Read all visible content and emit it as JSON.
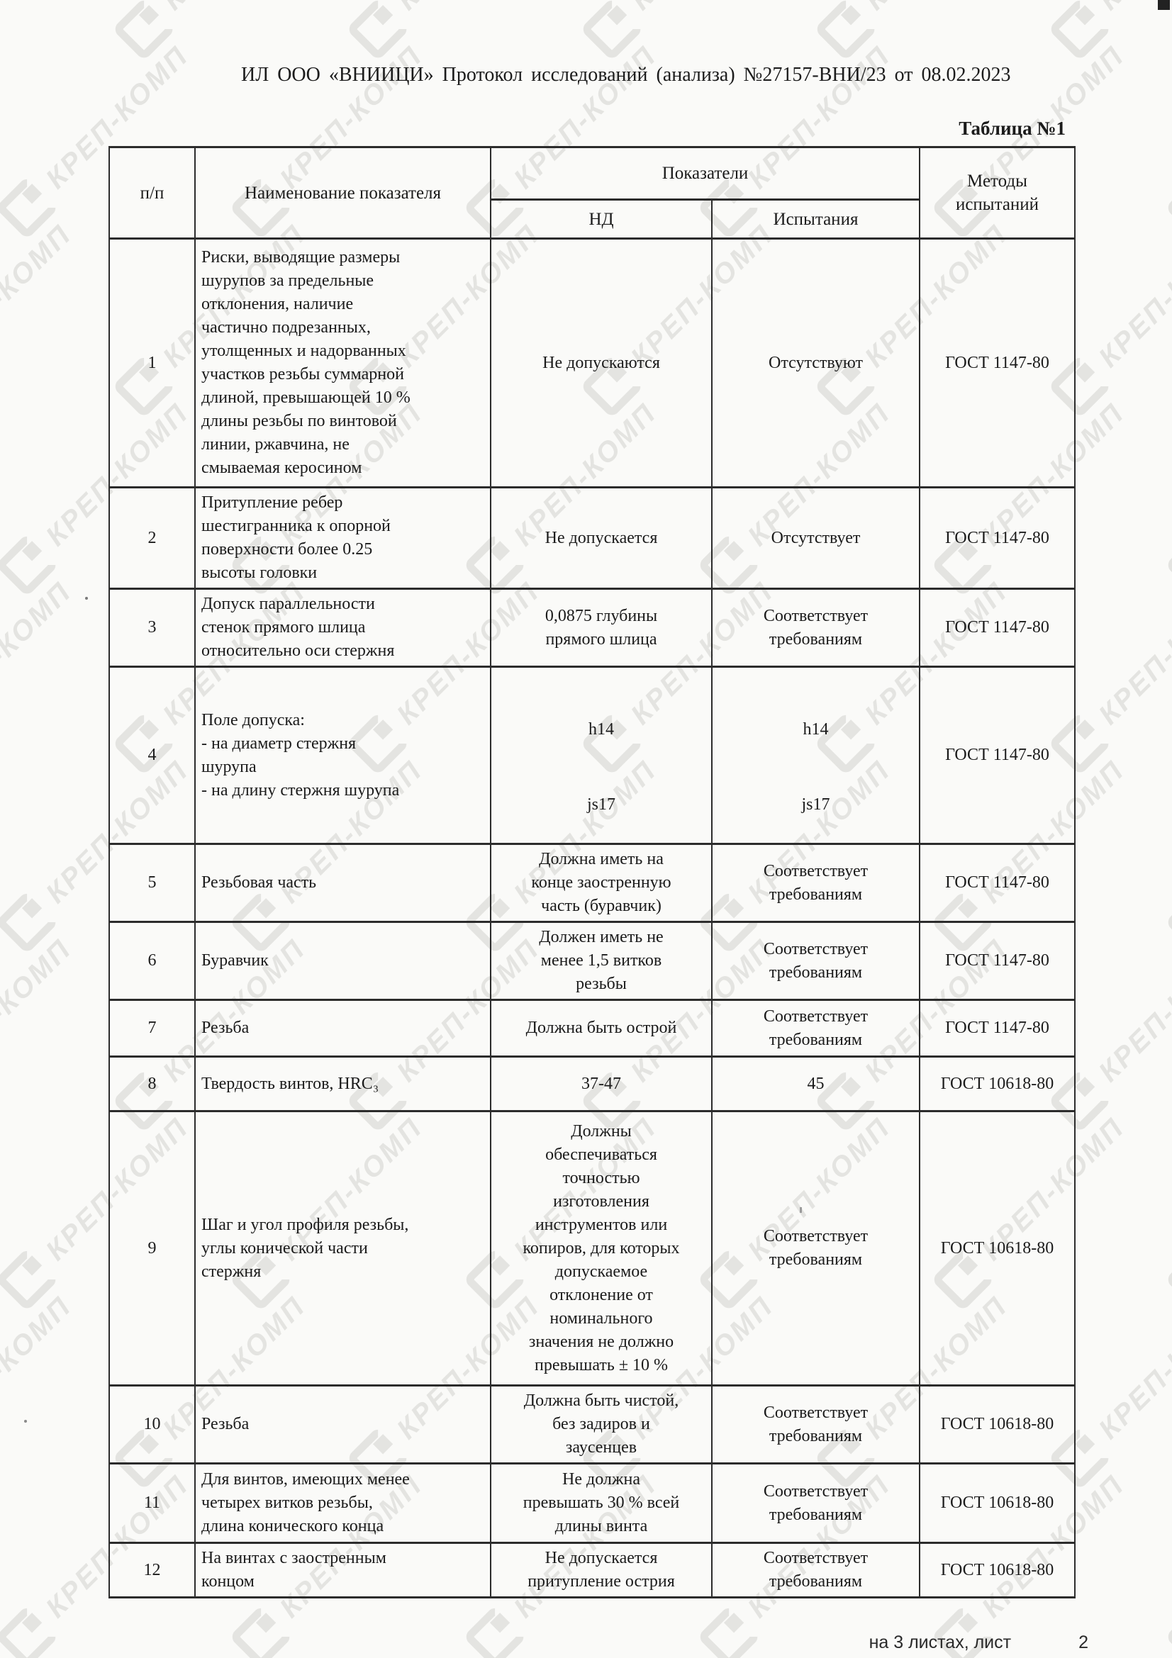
{
  "page": {
    "title": "ИЛ ООО «ВНИИЦИ» Протокол исследований (анализа) №27157-ВНИ/23 от 08.02.2023"
  },
  "table": {
    "caption": "Таблица №1",
    "columns": {
      "num": "п/п",
      "name": "Наименование показателя",
      "indicators": "Показатели",
      "nd": "НД",
      "test": "Испытания",
      "methods": "Методы\nиспытаний"
    },
    "rows": [
      {
        "num": "1",
        "name": "Риски, выводящие размеры\nшурупов за предельные\nотклонения, наличие\nчастично подрезанных,\nутолщенных и надорванных\nучастков резьбы суммарной\nдлиной, превышающей 10 %\nдлины резьбы по винтовой\nлинии, ржавчина, не\nсмываемая керосином",
        "nd": "Не допускаются",
        "test": "Отсутствуют",
        "method": "ГОСТ 1147-80"
      },
      {
        "num": "2",
        "name": "Притупление ребер\nшестигранника к опорной\nповерхности более 0.25\nвысоты головки",
        "nd": "Не допускается",
        "test": "Отсутствует",
        "method": "ГОСТ 1147-80"
      },
      {
        "num": "3",
        "name": "Допуск параллельности\nстенок прямого шлица\nотносительно оси стержня",
        "nd": "0,0875 глубины\nпрямого шлица",
        "test": "Соответствует\nтребованиям",
        "method": "ГОСТ 1147-80"
      },
      {
        "num": "4",
        "name": "Поле допуска:\n- на диаметр стержня\nшурупа\n- на длину стержня шурупа",
        "nd_top": "h14",
        "nd_bottom": "js17",
        "test_top": "h14",
        "test_bottom": "js17",
        "method": "ГОСТ 1147-80"
      },
      {
        "num": "5",
        "name": "Резьбовая часть",
        "nd": "Должна иметь на\nконце заостренную\nчасть (буравчик)",
        "test": "Соответствует\nтребованиям",
        "method": "ГОСТ 1147-80"
      },
      {
        "num": "6",
        "name": "Буравчик",
        "nd": "Должен иметь не\nменее 1,5 витков\nрезьбы",
        "test": "Соответствует\nтребованиям",
        "method": "ГОСТ 1147-80"
      },
      {
        "num": "7",
        "name": "Резьба",
        "nd": "Должна быть острой",
        "test": "Соответствует\nтребованиям",
        "method": "ГОСТ 1147-80"
      },
      {
        "num": "8",
        "name": "Твердость винтов, HRC₃",
        "nd": "37-47",
        "test": "45",
        "method": "ГОСТ 10618-80"
      },
      {
        "num": "9",
        "name": "Шаг и угол профиля резьбы,\nуглы конической части\nстержня",
        "nd": "Должны\nобеспечиваться\nточностью\nизготовления\nинструментов или\nкопиров, для которых\nдопускаемое\nотклонение от\nноминального\nзначения не должно\nпревышать ± 10 %",
        "test": "Соответствует\nтребованиям",
        "method": "ГОСТ 10618-80"
      },
      {
        "num": "10",
        "name": "Резьба",
        "nd": "Должна быть чистой,\nбез задиров и\nзаусенцев",
        "test": "Соответствует\nтребованиям",
        "method": "ГОСТ 10618-80"
      },
      {
        "num": "11",
        "name": "Для винтов, имеющих менее\nчетырех витков резьбы,\nдлина конического конца",
        "nd": "Не должна\nпревышать 30 % всей\nдлины винта",
        "test": "Соответствует\nтребованиям",
        "method": "ГОСТ 10618-80"
      },
      {
        "num": "12",
        "name": "На винтах с заостренным\nконцом",
        "nd": "Не допускается\nпритупление острия",
        "test": "Соответствует\nтребованиям",
        "method": "ГОСТ 10618-80"
      }
    ]
  },
  "footer": {
    "label": "на 3 листах, лист",
    "page": "2"
  },
  "watermark": {
    "text": "КРЕП-КОМП",
    "color": "#e4e4e1"
  }
}
